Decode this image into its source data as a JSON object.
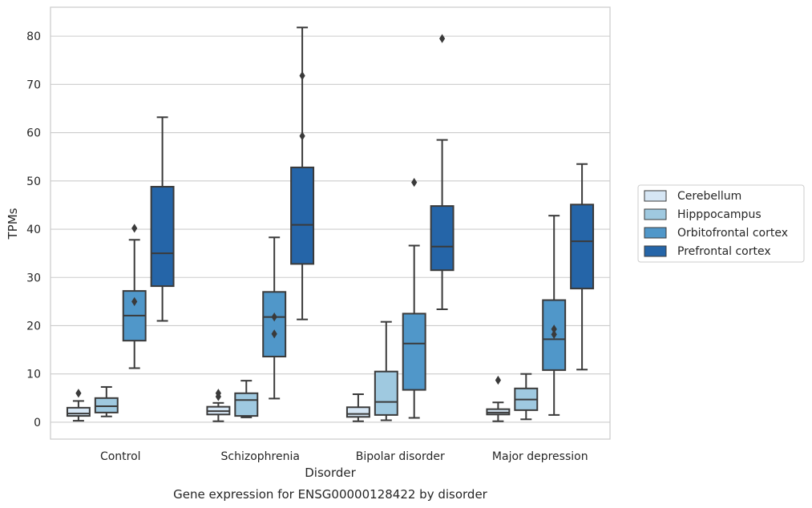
{
  "chart_data": {
    "type": "box",
    "xlabel": "Disorder",
    "ylabel": "TPMs",
    "caption": "Gene expression for ENSG00000128422 by disorder",
    "ylim": [
      -3.5,
      86
    ],
    "yticks": [
      0,
      10,
      20,
      30,
      40,
      50,
      60,
      70,
      80
    ],
    "grid": "horizontal",
    "legend_position": "right",
    "categories": [
      "Control",
      "Schizophrenia",
      "Bipolar disorder",
      "Major depression"
    ],
    "series": [
      {
        "name": "Cerebellum",
        "color": "#d6e6f4",
        "boxes": [
          {
            "whisker_low": 0.3,
            "q1": 1.3,
            "median": 1.8,
            "q3": 3.0,
            "whisker_high": 4.4,
            "outliers": [
              6.0
            ]
          },
          {
            "whisker_low": 0.2,
            "q1": 1.6,
            "median": 2.3,
            "q3": 3.2,
            "whisker_high": 4.0,
            "outliers": [
              5.3,
              6.0
            ]
          },
          {
            "whisker_low": 0.2,
            "q1": 1.1,
            "median": 1.7,
            "q3": 3.1,
            "whisker_high": 5.8,
            "outliers": []
          },
          {
            "whisker_low": 0.2,
            "q1": 1.6,
            "median": 2.0,
            "q3": 2.7,
            "whisker_high": 4.1,
            "outliers": [
              8.7
            ]
          }
        ]
      },
      {
        "name": "Hipppocampus",
        "color": "#9fc9e0",
        "boxes": [
          {
            "whisker_low": 1.2,
            "q1": 2.0,
            "median": 3.3,
            "q3": 5.0,
            "whisker_high": 7.3,
            "outliers": []
          },
          {
            "whisker_low": 1.0,
            "q1": 1.3,
            "median": 4.6,
            "q3": 6.0,
            "whisker_high": 8.6,
            "outliers": []
          },
          {
            "whisker_low": 0.4,
            "q1": 1.5,
            "median": 4.2,
            "q3": 10.5,
            "whisker_high": 20.8,
            "outliers": []
          },
          {
            "whisker_low": 0.6,
            "q1": 2.5,
            "median": 4.7,
            "q3": 7.0,
            "whisker_high": 10.0,
            "outliers": []
          }
        ]
      },
      {
        "name": "Orbitofrontal cortex",
        "color": "#5097c9",
        "boxes": [
          {
            "whisker_low": 11.2,
            "q1": 16.9,
            "median": 22.1,
            "q3": 27.2,
            "whisker_high": 37.8,
            "outliers": [
              25.0,
              40.2
            ]
          },
          {
            "whisker_low": 4.9,
            "q1": 13.6,
            "median": 21.8,
            "q3": 27.0,
            "whisker_high": 38.3,
            "outliers": [
              18.3,
              21.8
            ]
          },
          {
            "whisker_low": 0.9,
            "q1": 6.7,
            "median": 16.3,
            "q3": 22.5,
            "whisker_high": 36.6,
            "outliers": [
              49.7
            ]
          },
          {
            "whisker_low": 1.5,
            "q1": 10.8,
            "median": 17.2,
            "q3": 25.3,
            "whisker_high": 42.8,
            "outliers": [
              18.2,
              19.3
            ]
          }
        ]
      },
      {
        "name": "Prefrontal cortex",
        "color": "#2565a8",
        "boxes": [
          {
            "whisker_low": 21.0,
            "q1": 28.2,
            "median": 35.0,
            "q3": 48.8,
            "whisker_high": 63.2,
            "outliers": []
          },
          {
            "whisker_low": 21.3,
            "q1": 32.8,
            "median": 40.9,
            "q3": 52.8,
            "whisker_high": 81.8,
            "outliers": [
              59.3,
              71.8
            ]
          },
          {
            "whisker_low": 23.4,
            "q1": 31.5,
            "median": 36.4,
            "q3": 44.8,
            "whisker_high": 58.5,
            "outliers": [
              79.5
            ]
          },
          {
            "whisker_low": 10.9,
            "q1": 27.7,
            "median": 37.5,
            "q3": 45.1,
            "whisker_high": 53.5,
            "outliers": []
          }
        ]
      }
    ]
  }
}
